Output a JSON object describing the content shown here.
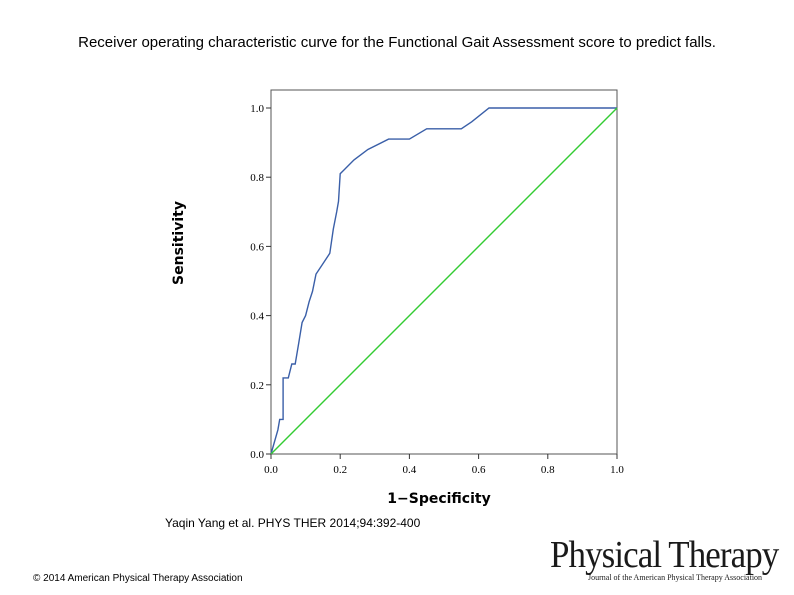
{
  "slide": {
    "title": "Receiver operating characteristic curve for the Functional Gait Assessment score to predict falls.",
    "citation": "Yaqin Yang et al. PHYS THER 2014;94:392-400",
    "copyright": "© 2014 American Physical Therapy Association",
    "logo_text": "Physical Therapy",
    "logo_subtext": "Journal of the American Physical Therapy Association"
  },
  "chart_data": {
    "type": "line",
    "title": "",
    "xlabel": "1−Specificity",
    "ylabel": "Sensitivity",
    "xlim": [
      0.0,
      1.0
    ],
    "ylim": [
      0.0,
      1.0
    ],
    "xticks": [
      "0.0",
      "0.2",
      "0.4",
      "0.6",
      "0.8",
      "1.0"
    ],
    "yticks": [
      "0.0",
      "0.2",
      "0.4",
      "0.6",
      "0.8",
      "1.0"
    ],
    "grid": false,
    "series": [
      {
        "color": "#3a5fa8",
        "points": [
          [
            0.0,
            0.0
          ],
          [
            0.02,
            0.07
          ],
          [
            0.025,
            0.1
          ],
          [
            0.035,
            0.1
          ],
          [
            0.035,
            0.22
          ],
          [
            0.05,
            0.22
          ],
          [
            0.06,
            0.26
          ],
          [
            0.07,
            0.26
          ],
          [
            0.08,
            0.32
          ],
          [
            0.09,
            0.38
          ],
          [
            0.1,
            0.4
          ],
          [
            0.11,
            0.44
          ],
          [
            0.12,
            0.47
          ],
          [
            0.13,
            0.52
          ],
          [
            0.15,
            0.55
          ],
          [
            0.17,
            0.58
          ],
          [
            0.18,
            0.65
          ],
          [
            0.19,
            0.7
          ],
          [
            0.195,
            0.73
          ],
          [
            0.2,
            0.81
          ],
          [
            0.21,
            0.82
          ],
          [
            0.24,
            0.85
          ],
          [
            0.28,
            0.88
          ],
          [
            0.34,
            0.91
          ],
          [
            0.4,
            0.91
          ],
          [
            0.45,
            0.94
          ],
          [
            0.55,
            0.94
          ],
          [
            0.58,
            0.96
          ],
          [
            0.63,
            1.0
          ],
          [
            1.0,
            1.0
          ]
        ]
      },
      {
        "color": "#33cc33",
        "points": [
          [
            0.0,
            0.0
          ],
          [
            1.0,
            1.0
          ]
        ]
      }
    ]
  }
}
